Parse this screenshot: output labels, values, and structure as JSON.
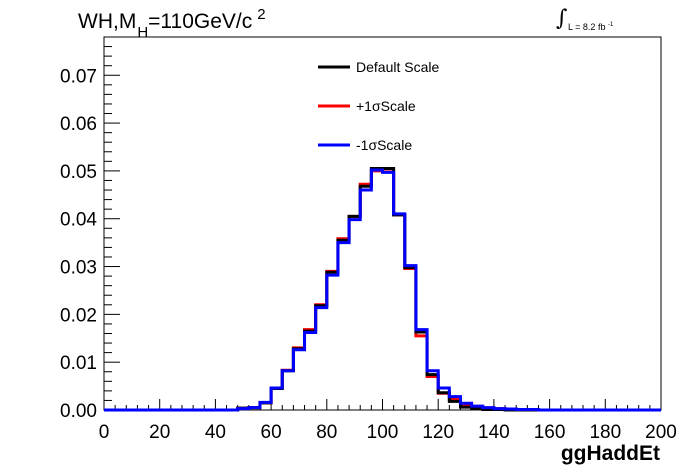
{
  "title": {
    "main": "WH,M",
    "sub": "H",
    "rest": "=110GeV/c",
    "sup": "2"
  },
  "lumi": {
    "integral": "∫",
    "text": "L = 8.2 fb",
    "sup": "-1"
  },
  "chart_data": {
    "type": "line",
    "xlabel": "ggHaddEt",
    "ylabel": "",
    "xlim": [
      0,
      200
    ],
    "ylim": [
      0,
      0.078
    ],
    "xticks": [
      "0",
      "20",
      "40",
      "60",
      "80",
      "100",
      "120",
      "140",
      "160",
      "180",
      "200"
    ],
    "yticks": [
      "0.00",
      "0.01",
      "0.02",
      "0.03",
      "0.04",
      "0.05",
      "0.06",
      "0.07"
    ],
    "legend_position": "top-center",
    "bin_width": 4,
    "x_bin_edges_start": 0,
    "series": [
      {
        "name": "Default Scale",
        "color": "#000000",
        "values": [
          0,
          0,
          0,
          0,
          0,
          0,
          0,
          0,
          0,
          0,
          0,
          0,
          0.0004,
          0.0005,
          0.0015,
          0.0045,
          0.0082,
          0.0128,
          0.0165,
          0.0218,
          0.0288,
          0.0355,
          0.0405,
          0.0468,
          0.0505,
          0.0505,
          0.0408,
          0.0298,
          0.0163,
          0.0074,
          0.0036,
          0.0018,
          0.0006,
          0.0002,
          0.0001,
          0.0001,
          0,
          0,
          0,
          0,
          0,
          0,
          0,
          0,
          0,
          0,
          0,
          0,
          0,
          0
        ]
      },
      {
        "name": "+1σScale",
        "color": "#ff0000",
        "values": [
          0,
          0,
          0,
          0,
          0,
          0,
          0,
          0,
          0,
          0,
          0,
          0,
          0.0004,
          0.0005,
          0.0015,
          0.0045,
          0.0083,
          0.013,
          0.0168,
          0.022,
          0.029,
          0.0358,
          0.0405,
          0.0472,
          0.05,
          0.0498,
          0.0408,
          0.0296,
          0.0155,
          0.007,
          0.0035,
          0.0022,
          0.001,
          0.0006,
          0.0004,
          0.0003,
          0.0002,
          0.0001,
          0,
          0,
          0,
          0,
          0,
          0,
          0,
          0,
          0,
          0,
          0,
          0
        ]
      },
      {
        "name": "-1σScale",
        "color": "#0000ff",
        "values": [
          0,
          0,
          0,
          0,
          0,
          0,
          0,
          0,
          0,
          0,
          0,
          0,
          0.0003,
          0.0005,
          0.0016,
          0.0046,
          0.0082,
          0.0126,
          0.0162,
          0.0214,
          0.0282,
          0.035,
          0.0398,
          0.046,
          0.0502,
          0.0497,
          0.041,
          0.0302,
          0.0168,
          0.0082,
          0.0046,
          0.0028,
          0.0014,
          0.0008,
          0.0005,
          0.0003,
          0.0002,
          0.0001,
          0.0001,
          0,
          0,
          0,
          0,
          0,
          0,
          0,
          0,
          0,
          0,
          0
        ]
      }
    ]
  }
}
